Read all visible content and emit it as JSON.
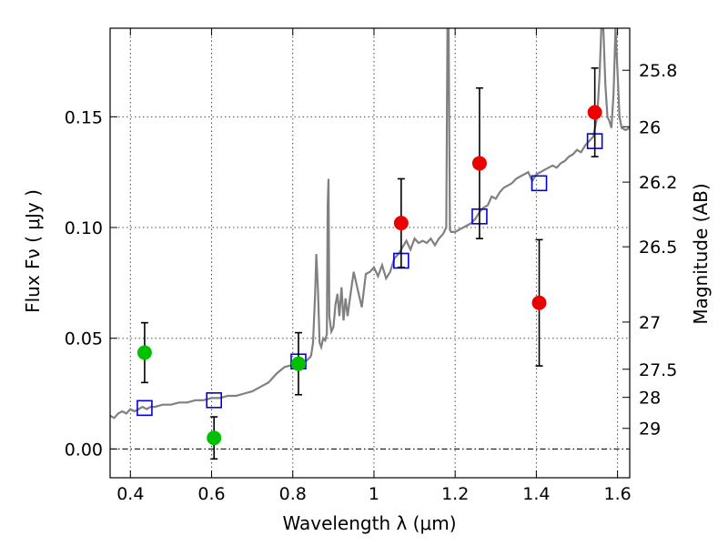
{
  "chart_data": {
    "type": "scatter",
    "x_label": "Wavelength  λ (μm)",
    "y_label_left": "Flux  Fν  ( μJy )",
    "y_label_right": "Magnitude (AB)",
    "xlim": [
      0.35,
      1.63
    ],
    "ylim": [
      -0.013,
      0.19
    ],
    "x_ticks": [
      0.4,
      0.6,
      0.8,
      1.0,
      1.2,
      1.4,
      1.6
    ],
    "x_tick_labels": [
      "0.4",
      "0.6",
      "0.8",
      "1",
      "1.2",
      "1.4",
      "1.6"
    ],
    "y_ticks": [
      0.0,
      0.05,
      0.1,
      0.15
    ],
    "y_tick_labels": [
      "0.00",
      "0.05",
      "0.10",
      "0.15"
    ],
    "right_ticks": [
      {
        "label": "25.8",
        "flux": 0.171
      },
      {
        "label": "26",
        "flux": 0.1455
      },
      {
        "label": "26.2",
        "flux": 0.1205
      },
      {
        "label": "26.5",
        "flux": 0.0913
      },
      {
        "label": "27",
        "flux": 0.0573
      },
      {
        "label": "27.5",
        "flux": 0.036
      },
      {
        "label": "28",
        "flux": 0.0233
      },
      {
        "label": "29",
        "flux": 0.0093
      }
    ],
    "grid": true,
    "zero_line": true,
    "colors": {
      "model": "#808080",
      "green": "#00c000",
      "red": "#ee0000",
      "square": "#0000dd",
      "errorbar": "#000000"
    },
    "series": [
      {
        "type": "observed_green",
        "points": [
          {
            "x": 0.435,
            "y": 0.0435,
            "err": 0.0135
          },
          {
            "x": 0.606,
            "y": 0.005,
            "err": 0.0095
          },
          {
            "x": 0.814,
            "y": 0.0385,
            "err": 0.014
          }
        ]
      },
      {
        "type": "observed_red",
        "points": [
          {
            "x": 1.067,
            "y": 0.102,
            "err": 0.02
          },
          {
            "x": 1.26,
            "y": 0.129,
            "err": 0.034
          },
          {
            "x": 1.407,
            "y": 0.066,
            "err": 0.0285
          },
          {
            "x": 1.544,
            "y": 0.152,
            "err": 0.02
          }
        ]
      },
      {
        "type": "model_squares",
        "points": [
          {
            "x": 0.435,
            "y": 0.0185
          },
          {
            "x": 0.606,
            "y": 0.022
          },
          {
            "x": 0.814,
            "y": 0.0395
          },
          {
            "x": 1.067,
            "y": 0.085
          },
          {
            "x": 1.26,
            "y": 0.105
          },
          {
            "x": 1.407,
            "y": 0.12
          },
          {
            "x": 1.544,
            "y": 0.139
          }
        ]
      },
      {
        "type": "model_sed",
        "points": [
          [
            0.35,
            0.015
          ],
          [
            0.36,
            0.014
          ],
          [
            0.37,
            0.016
          ],
          [
            0.38,
            0.017
          ],
          [
            0.39,
            0.016
          ],
          [
            0.4,
            0.018
          ],
          [
            0.41,
            0.017
          ],
          [
            0.42,
            0.018
          ],
          [
            0.43,
            0.019
          ],
          [
            0.44,
            0.018
          ],
          [
            0.45,
            0.019
          ],
          [
            0.46,
            0.019
          ],
          [
            0.48,
            0.02
          ],
          [
            0.5,
            0.02
          ],
          [
            0.52,
            0.021
          ],
          [
            0.54,
            0.021
          ],
          [
            0.56,
            0.022
          ],
          [
            0.58,
            0.022
          ],
          [
            0.6,
            0.023
          ],
          [
            0.62,
            0.023
          ],
          [
            0.64,
            0.024
          ],
          [
            0.66,
            0.024
          ],
          [
            0.68,
            0.025
          ],
          [
            0.7,
            0.026
          ],
          [
            0.72,
            0.028
          ],
          [
            0.74,
            0.03
          ],
          [
            0.76,
            0.034
          ],
          [
            0.78,
            0.037
          ],
          [
            0.8,
            0.038
          ],
          [
            0.82,
            0.039
          ],
          [
            0.835,
            0.04
          ],
          [
            0.845,
            0.042
          ],
          [
            0.85,
            0.048
          ],
          [
            0.855,
            0.07
          ],
          [
            0.858,
            0.088
          ],
          [
            0.862,
            0.072
          ],
          [
            0.866,
            0.048
          ],
          [
            0.87,
            0.046
          ],
          [
            0.875,
            0.05
          ],
          [
            0.88,
            0.049
          ],
          [
            0.884,
            0.052
          ],
          [
            0.886,
            0.11
          ],
          [
            0.888,
            0.122
          ],
          [
            0.89,
            0.06
          ],
          [
            0.895,
            0.053
          ],
          [
            0.9,
            0.055
          ],
          [
            0.905,
            0.065
          ],
          [
            0.91,
            0.07
          ],
          [
            0.915,
            0.06
          ],
          [
            0.92,
            0.073
          ],
          [
            0.925,
            0.058
          ],
          [
            0.93,
            0.068
          ],
          [
            0.935,
            0.06
          ],
          [
            0.94,
            0.067
          ],
          [
            0.95,
            0.08
          ],
          [
            0.96,
            0.072
          ],
          [
            0.97,
            0.064
          ],
          [
            0.98,
            0.079
          ],
          [
            0.99,
            0.08
          ],
          [
            1.0,
            0.082
          ],
          [
            1.01,
            0.078
          ],
          [
            1.02,
            0.083
          ],
          [
            1.03,
            0.077
          ],
          [
            1.04,
            0.08
          ],
          [
            1.05,
            0.086
          ],
          [
            1.06,
            0.088
          ],
          [
            1.07,
            0.091
          ],
          [
            1.08,
            0.094
          ],
          [
            1.09,
            0.09
          ],
          [
            1.1,
            0.095
          ],
          [
            1.11,
            0.093
          ],
          [
            1.12,
            0.094
          ],
          [
            1.13,
            0.093
          ],
          [
            1.14,
            0.095
          ],
          [
            1.15,
            0.092
          ],
          [
            1.16,
            0.095
          ],
          [
            1.17,
            0.097
          ],
          [
            1.178,
            0.1
          ],
          [
            1.181,
            0.19
          ],
          [
            1.184,
            0.19
          ],
          [
            1.187,
            0.099
          ],
          [
            1.19,
            0.098
          ],
          [
            1.2,
            0.098
          ],
          [
            1.21,
            0.099
          ],
          [
            1.22,
            0.1
          ],
          [
            1.23,
            0.101
          ],
          [
            1.24,
            0.102
          ],
          [
            1.25,
            0.104
          ],
          [
            1.26,
            0.107
          ],
          [
            1.27,
            0.109
          ],
          [
            1.28,
            0.11
          ],
          [
            1.29,
            0.114
          ],
          [
            1.3,
            0.113
          ],
          [
            1.31,
            0.116
          ],
          [
            1.32,
            0.118
          ],
          [
            1.33,
            0.119
          ],
          [
            1.34,
            0.12
          ],
          [
            1.35,
            0.122
          ],
          [
            1.36,
            0.123
          ],
          [
            1.37,
            0.124
          ],
          [
            1.38,
            0.125
          ],
          [
            1.39,
            0.121
          ],
          [
            1.4,
            0.124
          ],
          [
            1.41,
            0.125
          ],
          [
            1.42,
            0.126
          ],
          [
            1.43,
            0.127
          ],
          [
            1.44,
            0.128
          ],
          [
            1.45,
            0.127
          ],
          [
            1.46,
            0.129
          ],
          [
            1.47,
            0.13
          ],
          [
            1.48,
            0.132
          ],
          [
            1.49,
            0.133
          ],
          [
            1.5,
            0.135
          ],
          [
            1.51,
            0.134
          ],
          [
            1.52,
            0.137
          ],
          [
            1.53,
            0.139
          ],
          [
            1.54,
            0.141
          ],
          [
            1.55,
            0.15
          ],
          [
            1.556,
            0.17
          ],
          [
            1.56,
            0.19
          ],
          [
            1.565,
            0.19
          ],
          [
            1.57,
            0.165
          ],
          [
            1.575,
            0.15
          ],
          [
            1.58,
            0.148
          ],
          [
            1.585,
            0.145
          ],
          [
            1.59,
            0.16
          ],
          [
            1.595,
            0.19
          ],
          [
            1.6,
            0.17
          ],
          [
            1.605,
            0.15
          ],
          [
            1.61,
            0.145
          ],
          [
            1.62,
            0.144
          ],
          [
            1.63,
            0.145
          ]
        ]
      }
    ]
  }
}
